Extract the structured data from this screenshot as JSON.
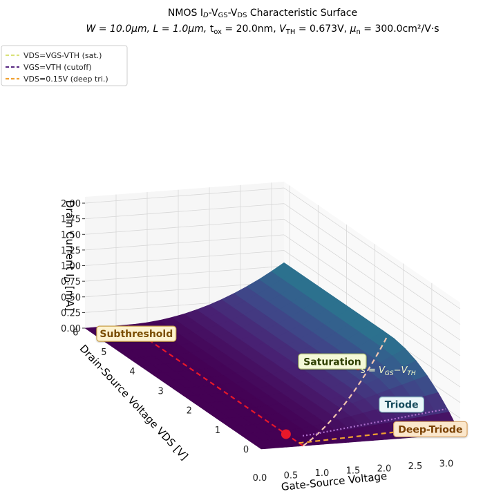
{
  "chart_data": {
    "type": "surface",
    "title": "NMOS I",
    "title_sub": "D",
    "title_mid1": "-V",
    "title_sub2": "GS",
    "title_mid2": "-V",
    "title_sub3": "DS",
    "title_tail": " Characteristic Surface",
    "subtitle": {
      "w": "W = 10.0μm,",
      "l": "L = 1.0μm,",
      "tox": "t",
      "tox_sub": "ox",
      "tox_val": " = 20.0nm,",
      "vth": "V",
      "vth_sub": "TH",
      "vth_val": " = 0.673V,",
      "mu": "μ",
      "mu_sub": "n",
      "mu_val": " = 300.0cm²/V·s"
    },
    "params": {
      "W_um": 10.0,
      "L_um": 1.0,
      "tox_nm": 20.0,
      "VTH": 0.673,
      "mu_n": 300.0
    },
    "xlabel": "Gate-Source Voltage",
    "ylabel": "Drain-Source Voltage VDS [V]",
    "zlabel": "Drain Current I",
    "zlabel_sub": "D",
    "zlabel_unit": " [mA]",
    "x_ticks": [
      "0.0",
      "0.5",
      "1.0",
      "1.5",
      "2.0",
      "2.5",
      "3.0"
    ],
    "y_ticks": [
      "0",
      "1",
      "2",
      "3",
      "4",
      "5",
      "6"
    ],
    "z_ticks": [
      "0.00",
      "0.25",
      "0.50",
      "0.75",
      "1.00",
      "1.25",
      "1.50",
      "1.75",
      "2.00"
    ],
    "xlim": [
      0,
      3.2
    ],
    "ylim": [
      0,
      6.2
    ],
    "zlim": [
      0,
      2.1
    ],
    "colormap": "viridis",
    "legend_position": "upper-left",
    "legend": [
      {
        "label": "VDS=VGS-VTH (sat.)",
        "color": "#d9e27a"
      },
      {
        "label": "VGS=VTH (cutoff)",
        "color": "#5b2c83"
      },
      {
        "label": "VDS=0.15V (deep tri.)",
        "color": "#f0a030"
      }
    ],
    "annotations": [
      {
        "text": "Subthreshold",
        "x": 0.35,
        "y": 3.7,
        "z": 0.0
      },
      {
        "text": "Saturation",
        "x": 2.3,
        "y": 1.8,
        "z": 0.62
      },
      {
        "text": "Triode",
        "x": 2.6,
        "y": 0.75,
        "z": 0.28
      },
      {
        "text": "Deep-Triode",
        "x": 2.9,
        "y": 0.15,
        "z": 0.05
      }
    ],
    "boundary_label": "s = V",
    "boundary_label_sub1": "GS",
    "boundary_label_mid": "−V",
    "boundary_label_sub2": "TH",
    "markers": [
      {
        "name": "cutoff-point",
        "x": 0.673,
        "y": 0.6,
        "z": 0.0,
        "color": "#e8182a"
      },
      {
        "name": "saturation-point",
        "x": 2.3,
        "y": 1.627,
        "z": 0.62,
        "color": "#d4182a"
      }
    ]
  }
}
